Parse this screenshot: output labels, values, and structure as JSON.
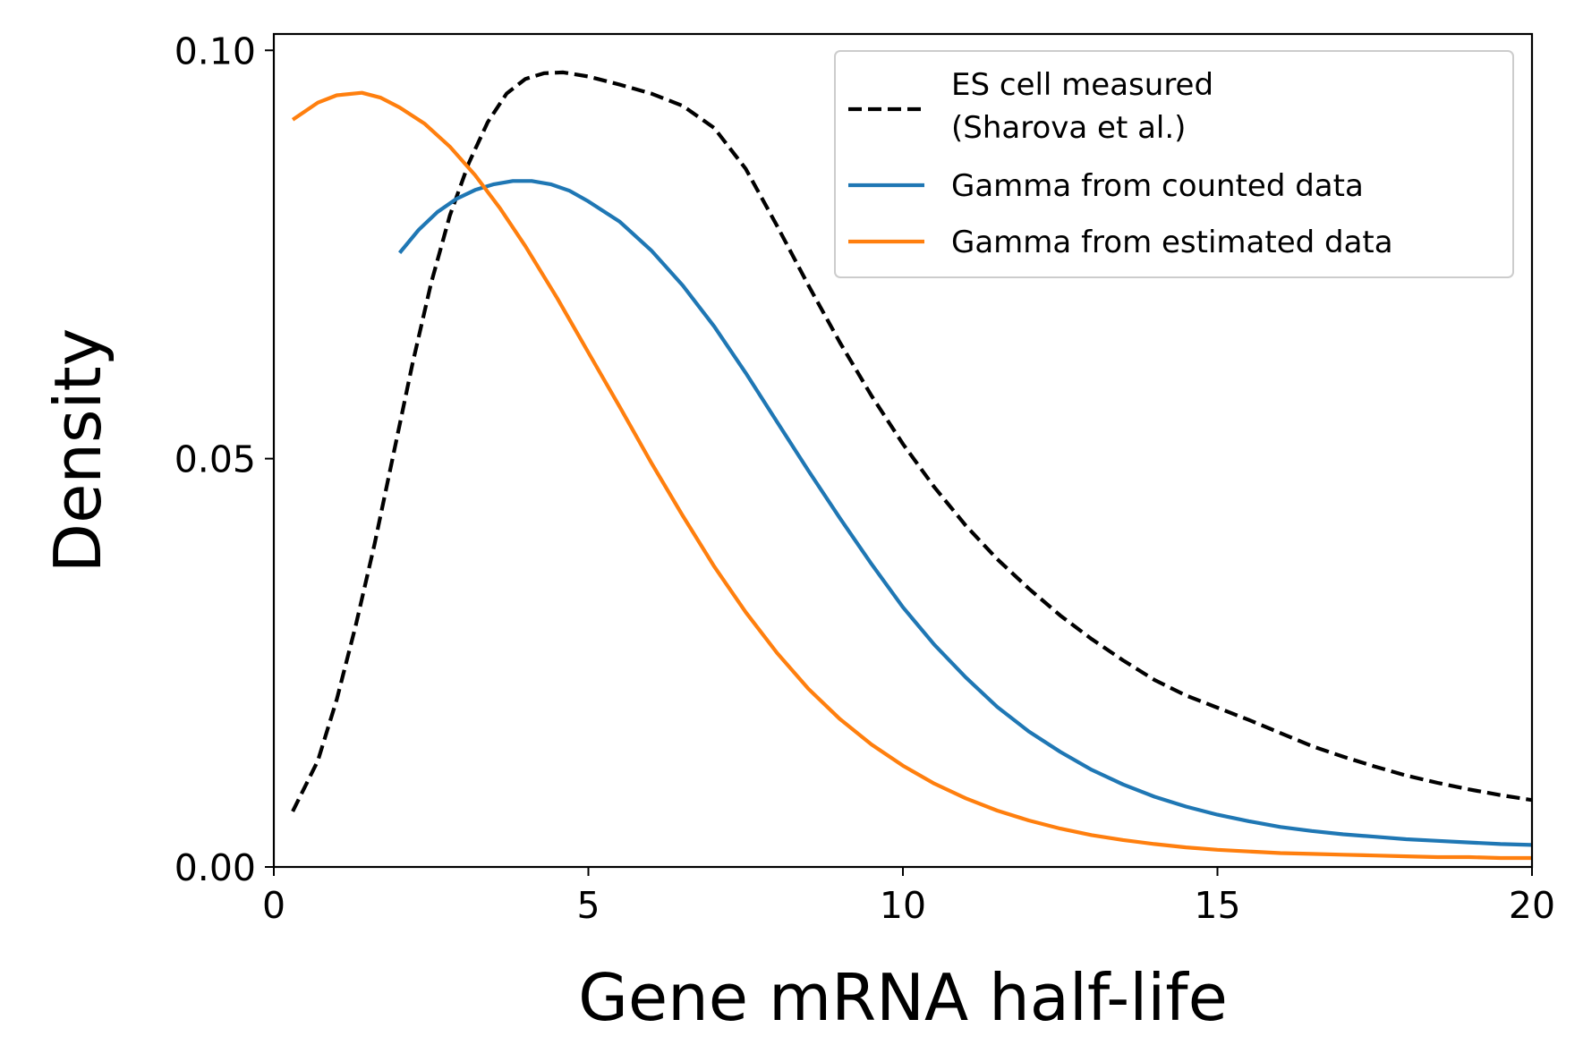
{
  "chart_data": {
    "type": "line",
    "title": "",
    "xlabel": "Gene mRNA half-life",
    "ylabel": "Density",
    "xlim": [
      0,
      20
    ],
    "ylim": [
      0,
      0.102
    ],
    "xticks": [
      0,
      5,
      10,
      15,
      20
    ],
    "xtick_labels": [
      "0",
      "5",
      "10",
      "15",
      "20"
    ],
    "yticks": [
      0.0,
      0.05,
      0.1
    ],
    "ytick_labels": [
      "0.00",
      "0.05",
      "0.10"
    ],
    "grid": false,
    "legend_position": "top-right",
    "series": [
      {
        "name": "ES cell measured\n(Sharova et al.)",
        "legend_lines": [
          "ES cell measured",
          "(Sharova et al.)"
        ],
        "color": "#000000",
        "style": "dashed",
        "x": [
          0.3,
          0.7,
          1.0,
          1.3,
          1.6,
          1.9,
          2.2,
          2.5,
          2.8,
          3.1,
          3.4,
          3.7,
          4.0,
          4.3,
          4.6,
          5.0,
          5.5,
          6.0,
          6.5,
          7.0,
          7.5,
          8.0,
          8.5,
          9.0,
          9.5,
          10.0,
          10.5,
          11.0,
          11.5,
          12.0,
          12.5,
          13.0,
          13.5,
          14.0,
          14.5,
          15.0,
          15.5,
          16.0,
          16.5,
          17.0,
          17.5,
          18.0,
          18.5,
          19.0,
          19.5,
          20.0
        ],
        "values": [
          0.0068,
          0.013,
          0.0205,
          0.0295,
          0.0395,
          0.0505,
          0.0615,
          0.0715,
          0.0798,
          0.0862,
          0.0912,
          0.0947,
          0.0965,
          0.0972,
          0.0973,
          0.0968,
          0.0958,
          0.0947,
          0.0932,
          0.0905,
          0.0855,
          0.0785,
          0.0712,
          0.0642,
          0.0577,
          0.0518,
          0.0465,
          0.0418,
          0.0377,
          0.0341,
          0.0308,
          0.0279,
          0.0253,
          0.0229,
          0.021,
          0.0195,
          0.018,
          0.0164,
          0.0148,
          0.0135,
          0.0123,
          0.0112,
          0.0103,
          0.0095,
          0.0088,
          0.0082
        ]
      },
      {
        "name": "Gamma from counted data",
        "color": "#1f77b4",
        "style": "solid",
        "x": [
          2.0,
          2.3,
          2.6,
          2.9,
          3.2,
          3.5,
          3.8,
          4.1,
          4.4,
          4.7,
          5.0,
          5.5,
          6.0,
          6.5,
          7.0,
          7.5,
          8.0,
          8.5,
          9.0,
          9.5,
          10.0,
          10.5,
          11.0,
          11.5,
          12.0,
          12.5,
          13.0,
          13.5,
          14.0,
          14.5,
          15.0,
          15.5,
          16.0,
          16.5,
          17.0,
          17.5,
          18.0,
          18.5,
          19.0,
          19.5,
          20.0
        ],
        "values": [
          0.0752,
          0.078,
          0.0802,
          0.0818,
          0.0829,
          0.0836,
          0.084,
          0.084,
          0.0836,
          0.0828,
          0.0815,
          0.079,
          0.0755,
          0.0712,
          0.0662,
          0.0605,
          0.0545,
          0.0485,
          0.0427,
          0.0371,
          0.0318,
          0.0272,
          0.0232,
          0.0196,
          0.0166,
          0.0141,
          0.0119,
          0.0101,
          0.0086,
          0.0074,
          0.0064,
          0.0056,
          0.0049,
          0.0044,
          0.004,
          0.0037,
          0.0034,
          0.0032,
          0.003,
          0.0028,
          0.0027
        ]
      },
      {
        "name": "Gamma from estimated data",
        "color": "#ff7f0e",
        "style": "solid",
        "x": [
          0.3,
          0.7,
          1.0,
          1.4,
          1.7,
          2.0,
          2.4,
          2.8,
          3.2,
          3.6,
          4.0,
          4.5,
          5.0,
          5.5,
          6.0,
          6.5,
          7.0,
          7.5,
          8.0,
          8.5,
          9.0,
          9.5,
          10.0,
          10.5,
          11.0,
          11.5,
          12.0,
          12.5,
          13.0,
          13.5,
          14.0,
          14.5,
          15.0,
          15.5,
          16.0,
          16.5,
          17.0,
          17.5,
          18.0,
          18.5,
          19.0,
          19.5,
          20.0
        ],
        "values": [
          0.0915,
          0.0936,
          0.0945,
          0.0948,
          0.0942,
          0.093,
          0.091,
          0.0882,
          0.0847,
          0.0806,
          0.076,
          0.0697,
          0.063,
          0.0563,
          0.0495,
          0.043,
          0.0368,
          0.0312,
          0.0262,
          0.0218,
          0.0181,
          0.015,
          0.0124,
          0.0102,
          0.0084,
          0.0069,
          0.0057,
          0.0047,
          0.0039,
          0.0033,
          0.0028,
          0.0024,
          0.0021,
          0.0019,
          0.0017,
          0.0016,
          0.0015,
          0.0014,
          0.0013,
          0.0012,
          0.0012,
          0.0011,
          0.0011
        ]
      }
    ]
  }
}
